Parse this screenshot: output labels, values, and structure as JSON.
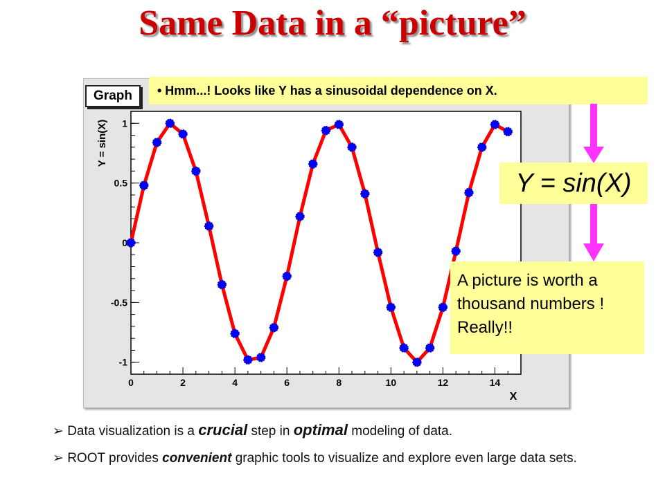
{
  "slide": {
    "title": "Same Data in a “picture”",
    "graph_label": "Graph",
    "callout": "• Hmm...! Looks like Y has a sinusoidal dependence on X.",
    "formula": "Y = sin(X)",
    "note": "A picture is worth a thousand numbers ! Really!!",
    "bullets": [
      {
        "marker": "➢",
        "pre": " Data visualization is a ",
        "em1": "crucial",
        "mid": " step in ",
        "em2": "optimal",
        "post": " modeling of data."
      },
      {
        "marker": "➢",
        "pre": " ROOT provides ",
        "em1": "convenient",
        "post": " graphic tools to visualize and explore even large data sets."
      }
    ],
    "colors": {
      "title": "#cc0000",
      "callout_bg": "#ffff99",
      "arrow": "#ff33ff",
      "curve": "#ff0000",
      "markers": "#0000ff"
    }
  },
  "chart_data": {
    "type": "line",
    "title": "",
    "xlabel": "X",
    "ylabel": "Y = sin(X)",
    "xlim": [
      0,
      15
    ],
    "ylim": [
      -1.1,
      1.1
    ],
    "xticks": [
      0,
      2,
      4,
      6,
      8,
      10,
      12,
      14
    ],
    "xtick_labels": [
      "0",
      "2",
      "4",
      "6",
      "8",
      "10",
      "12",
      "14"
    ],
    "yticks": [
      -1,
      -0.5,
      0,
      0.5,
      1
    ],
    "ytick_labels": [
      "-1",
      "-0.5",
      "0",
      "0.5",
      "1"
    ],
    "grid": false,
    "series": [
      {
        "x": [
          0,
          0.5,
          1,
          1.5,
          2,
          2.5,
          3,
          3.5,
          4,
          4.5,
          5,
          5.5,
          6,
          6.5,
          7,
          7.5,
          8,
          8.5,
          9,
          9.5,
          10,
          10.5,
          11,
          11.5,
          12,
          12.5,
          13,
          13.5,
          14,
          14.5
        ],
        "y": [
          0,
          0.48,
          0.84,
          1,
          0.91,
          0.6,
          0.14,
          -0.35,
          -0.76,
          -0.98,
          -0.96,
          -0.71,
          -0.28,
          0.22,
          0.66,
          0.94,
          0.99,
          0.8,
          0.41,
          -0.08,
          -0.54,
          -0.88,
          -1,
          -0.88,
          -0.54,
          -0.07,
          0.42,
          0.8,
          0.99,
          0.93
        ]
      }
    ]
  }
}
